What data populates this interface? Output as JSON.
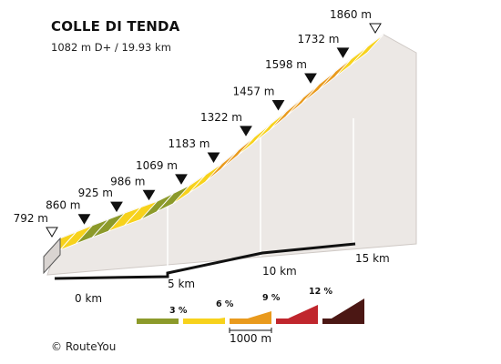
{
  "header": {
    "title": "COLLE DI TENDA",
    "subtitle": "1082 m D+ / 19.93 km"
  },
  "credit": "© RouteYou",
  "chart_data": {
    "type": "area",
    "title": "COLLE DI TENDA",
    "subtitle": "1082 m D+ / 19.93 km",
    "x_unit": "km",
    "y_unit": "m",
    "total_distance_km": 19.93,
    "total_gain_m": 1082,
    "points": [
      {
        "km": 0,
        "elevation": 792,
        "label": "792 m"
      },
      {
        "km": 1,
        "elevation": 860,
        "label": "860 m"
      },
      {
        "km": 2,
        "elevation": 925,
        "label": "925 m"
      },
      {
        "km": 3,
        "elevation": 986,
        "label": "986 m"
      },
      {
        "km": 4,
        "elevation": 1069,
        "label": "1069 m"
      },
      {
        "km": 5,
        "elevation": 1183,
        "label": "1183 m"
      },
      {
        "km": 6,
        "elevation": 1322,
        "label": "1322 m"
      },
      {
        "km": 7,
        "elevation": 1457,
        "label": "1457 m"
      },
      {
        "km": 8,
        "elevation": 1598,
        "label": "1598 m"
      },
      {
        "km": 9,
        "elevation": 1732,
        "label": "1732 m"
      },
      {
        "km": 10,
        "elevation": 1860,
        "label": "1860 m"
      }
    ],
    "segments": [
      {
        "from": 0,
        "to": 1,
        "grade_class": "6%"
      },
      {
        "from": 1,
        "to": 2,
        "grade_class": "3%"
      },
      {
        "from": 2,
        "to": 3,
        "grade_class": "6%"
      },
      {
        "from": 3,
        "to": 4,
        "grade_class": "3%"
      },
      {
        "from": 4,
        "to": 5,
        "grade_class": "6%"
      },
      {
        "from": 5,
        "to": 6,
        "grade_class": "9%"
      },
      {
        "from": 6,
        "to": 7,
        "grade_class": "6%"
      },
      {
        "from": 7,
        "to": 8,
        "grade_class": "9%"
      },
      {
        "from": 8,
        "to": 9,
        "grade_class": "9%"
      },
      {
        "from": 9,
        "to": 10,
        "grade_class": "6%"
      },
      {
        "from": 10,
        "to": 11,
        "grade_class": "9%"
      }
    ],
    "x_ticks": [
      "0 km",
      "5 km",
      "10 km",
      "15 km"
    ],
    "legend": {
      "items": [
        {
          "label": "3 %",
          "color": "#8c9a2a"
        },
        {
          "label": "6 %",
          "color": "#f7d21c"
        },
        {
          "label": "9 %",
          "color": "#e99a1d"
        },
        {
          "label": "12 %",
          "color": "#c0262d"
        },
        {
          "label": "",
          "color": "#4b1714"
        }
      ],
      "scale_label": "1000 m"
    },
    "colors": {
      "3%": "#8c9a2a",
      "6%": "#f7d21c",
      "9%": "#e99a1d",
      "side": "#ece8e5",
      "stripe_light": "#ffffff"
    }
  }
}
